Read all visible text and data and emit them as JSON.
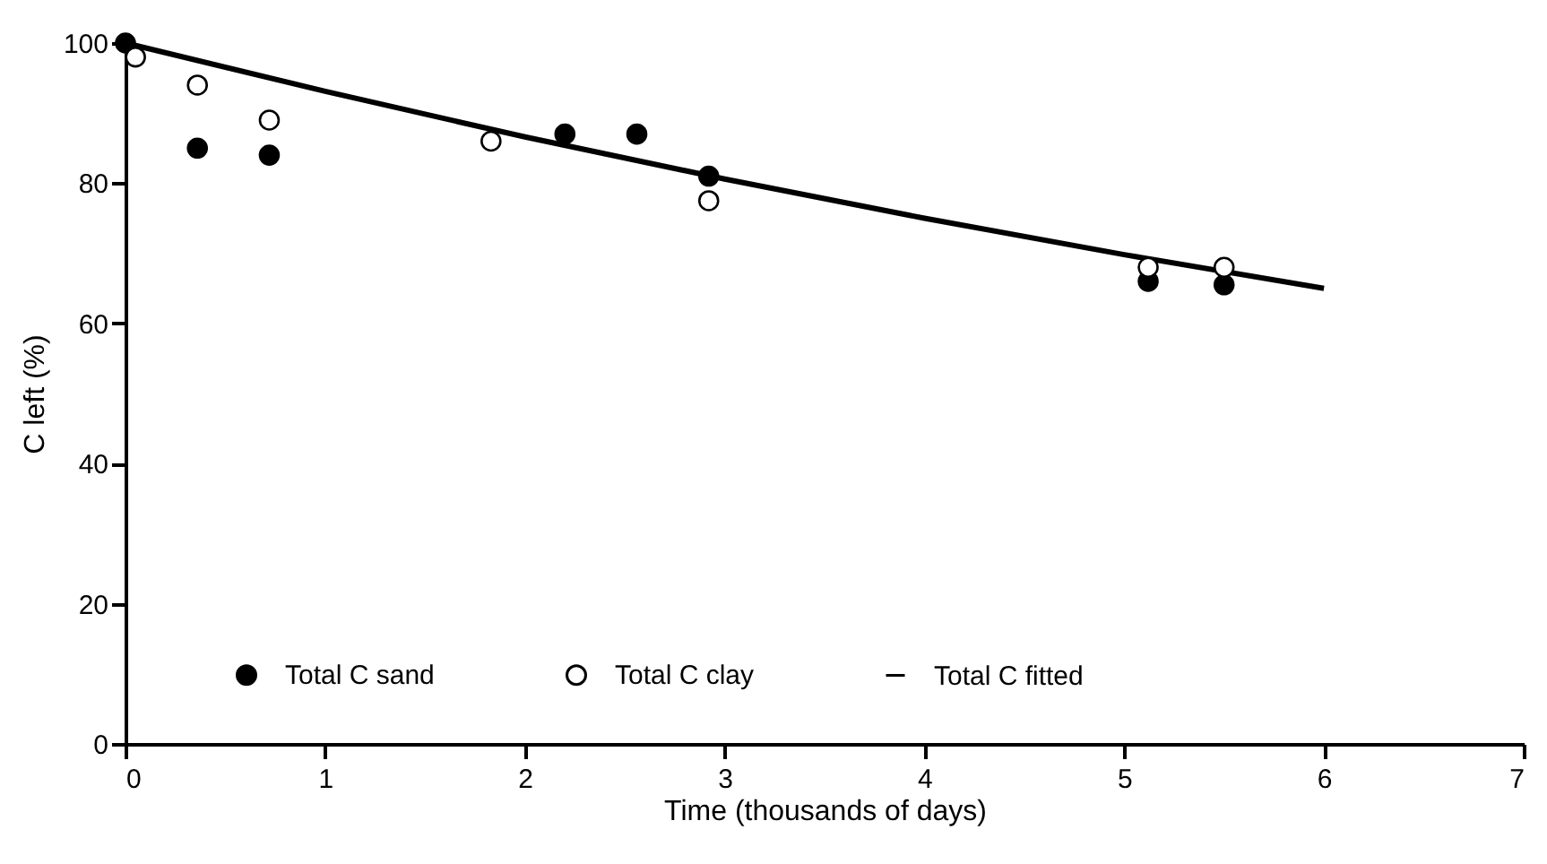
{
  "chart_data": {
    "type": "scatter",
    "xlabel": "Time (thousands of days)",
    "ylabel": "C left (%)",
    "xlim": [
      0,
      7
    ],
    "xticks": [
      0,
      1,
      2,
      3,
      4,
      5,
      6,
      7
    ],
    "ylim": [
      0,
      100
    ],
    "yticks": [
      0,
      20,
      40,
      60,
      80,
      100
    ],
    "grid": false,
    "legend": "bottom",
    "series": [
      {
        "name": "Total C sand",
        "color": "#000000",
        "marker": "circle",
        "x": [
          0,
          0.36,
          0.72,
          2.2,
          2.56,
          2.92,
          5.12,
          5.5
        ],
        "values": [
          100,
          85,
          84,
          87,
          87,
          81,
          66,
          65.5
        ]
      },
      {
        "name": "Total C clay",
        "color": "#ffffff",
        "marker": "circle",
        "x": [
          0.05,
          0.36,
          0.72,
          1.83,
          2.92,
          5.12,
          5.5
        ],
        "values": [
          98,
          94,
          89,
          86,
          77.5,
          68,
          68
        ]
      },
      {
        "name": "Total C fitted",
        "type": "line",
        "color": "#000000",
        "x": [
          0,
          1,
          2,
          3,
          4,
          5,
          6
        ],
        "values": [
          100,
          93.1,
          86.6,
          80.6,
          75,
          69.8,
          65
        ]
      }
    ]
  }
}
